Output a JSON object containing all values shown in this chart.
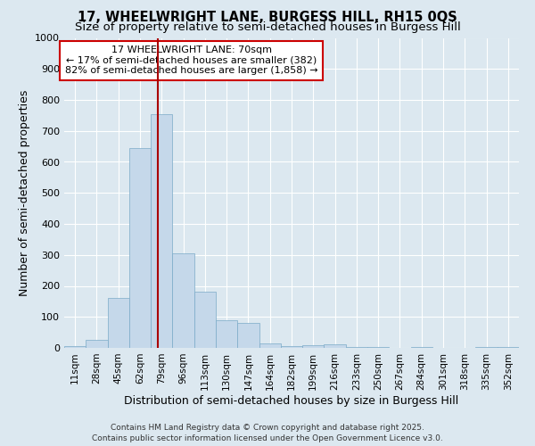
{
  "title_line1": "17, WHEELWRIGHT LANE, BURGESS HILL, RH15 0QS",
  "title_line2": "Size of property relative to semi-detached houses in Burgess Hill",
  "xlabel": "Distribution of semi-detached houses by size in Burgess Hill",
  "ylabel": "Number of semi-detached properties",
  "categories": [
    "11sqm",
    "28sqm",
    "45sqm",
    "62sqm",
    "79sqm",
    "96sqm",
    "113sqm",
    "130sqm",
    "147sqm",
    "164sqm",
    "182sqm",
    "199sqm",
    "216sqm",
    "233sqm",
    "250sqm",
    "267sqm",
    "284sqm",
    "301sqm",
    "318sqm",
    "335sqm",
    "352sqm"
  ],
  "values": [
    5,
    25,
    160,
    645,
    755,
    305,
    180,
    90,
    80,
    15,
    5,
    10,
    12,
    3,
    3,
    0,
    3,
    0,
    0,
    3,
    3
  ],
  "bar_color": "#c5d8ea",
  "bar_edge_color": "#7aaac8",
  "vline_x": 3.82,
  "vline_color": "#aa0000",
  "ylim": [
    0,
    1000
  ],
  "yticks": [
    0,
    100,
    200,
    300,
    400,
    500,
    600,
    700,
    800,
    900,
    1000
  ],
  "annotation_title": "17 WHEELWRIGHT LANE: 70sqm",
  "annotation_line1": "← 17% of semi-detached houses are smaller (382)",
  "annotation_line2": "82% of semi-detached houses are larger (1,858) →",
  "annotation_box_color": "#ffffff",
  "annotation_box_edge_color": "#cc0000",
  "footer_line1": "Contains HM Land Registry data © Crown copyright and database right 2025.",
  "footer_line2": "Contains public sector information licensed under the Open Government Licence v3.0.",
  "bg_color": "#dce8f0",
  "grid_color": "#ffffff",
  "title_fontsize": 10.5,
  "subtitle_fontsize": 9.5,
  "tick_label_fontsize": 7.5,
  "axis_label_fontsize": 9,
  "footer_fontsize": 6.5,
  "annot_fontsize": 8
}
